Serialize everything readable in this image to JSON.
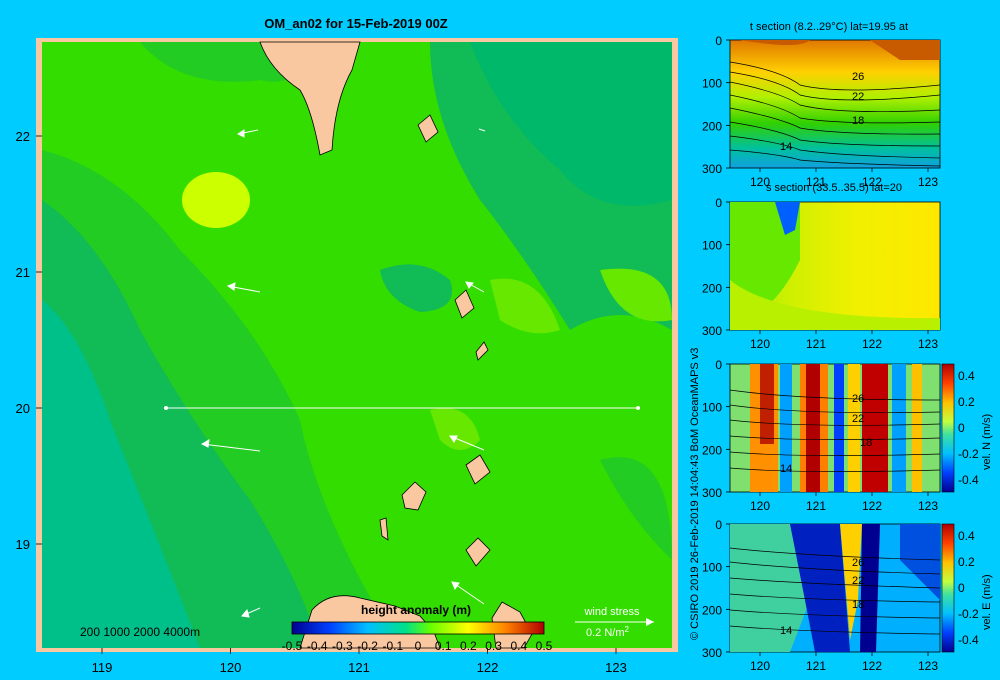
{
  "main_map": {
    "title": "OM_an02 for 15-Feb-2019 00Z",
    "lon_ticks": [
      "119",
      "120",
      "121",
      "122",
      "123"
    ],
    "lat_ticks": [
      "22",
      "21",
      "20",
      "19"
    ],
    "depth_legend": "200  1000  2000  4000m",
    "colorbar_title": "height anomaly  (m)",
    "colorbar_ticks": [
      "-0.5",
      "-0.4",
      "-0.3",
      "-0.2",
      "-0.1",
      "0",
      "0.1",
      "0.2",
      "0.3",
      "0.4",
      "0.5"
    ],
    "wind_stress_label": "wind stress",
    "wind_stress_scale": "0.2 N/m",
    "wind_stress_exp": "2",
    "section_line_lat": 20
  },
  "side_labels": {
    "credit_vertical": "© CSIRO 2019   26-Feb-2019 14:04:43 BoM OceanMAPS v3"
  },
  "panels": {
    "t_section": {
      "title": "t section (8.2..29°C) lat=19.95 at",
      "contour_labels": [
        "26",
        "22",
        "18",
        "14"
      ],
      "y_ticks": [
        "0",
        "100",
        "200",
        "300"
      ],
      "x_ticks": [
        "120",
        "121",
        "122",
        "123"
      ]
    },
    "s_section": {
      "title": "s section (33.5..35.5) lat=20",
      "y_ticks": [
        "0",
        "100",
        "200",
        "300"
      ],
      "x_ticks": [
        "120",
        "121",
        "122",
        "123"
      ]
    },
    "vn_section": {
      "axis_label": "vel. N  (m/s)",
      "contour_labels": [
        "26",
        "22",
        "18",
        "14"
      ],
      "y_ticks": [
        "0",
        "100",
        "200",
        "300"
      ],
      "x_ticks": [
        "120",
        "121",
        "122",
        "123"
      ],
      "cb_ticks": [
        "0.4",
        "0.2",
        "0",
        "-0.2",
        "-0.4"
      ]
    },
    "ve_section": {
      "axis_label": "vel. E  (m/s)",
      "contour_labels": [
        "26",
        "22",
        "18",
        "14"
      ],
      "y_ticks": [
        "0",
        "100",
        "200",
        "300"
      ],
      "x_ticks": [
        "120",
        "121",
        "122",
        "123"
      ],
      "cb_ticks": [
        "0.4",
        "0.2",
        "0",
        "-0.2",
        "-0.4"
      ]
    }
  },
  "colors": {
    "background": "#00ccff",
    "land": "#fac8a0",
    "anomaly_0": "#33dd00",
    "anomaly_neg": "#00c08a",
    "anomaly_pos": "#ccff00"
  }
}
